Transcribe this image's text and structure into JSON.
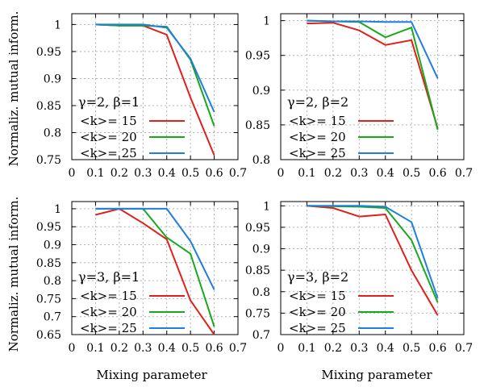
{
  "figure": {
    "ylabel": "Normaliz. mutual inform.",
    "xlabel": "Mixing parameter"
  },
  "chart_data": [
    {
      "type": "line",
      "annotation": "γ=2,  β=1",
      "x": [
        0.1,
        0.2,
        0.3,
        0.4,
        0.5,
        0.6
      ],
      "xlim": [
        0,
        0.7
      ],
      "ylim": [
        0.75,
        1.02
      ],
      "xticks": [
        "0",
        "0.1",
        "0.2",
        "0.3",
        "0.4",
        "0.5",
        "0.6",
        "0.7"
      ],
      "yticks": [
        "0.75",
        "0.8",
        "0.85",
        "0.9",
        "0.95",
        "1"
      ],
      "ytick_values": [
        0.75,
        0.8,
        0.85,
        0.9,
        0.95,
        1.0
      ],
      "grid": true,
      "legend_position": "bottom-left",
      "series": [
        {
          "name": "<k>= 15",
          "color": "#e0201a",
          "values": [
            1.0,
            0.998,
            0.998,
            0.981,
            0.865,
            0.758
          ]
        },
        {
          "name": "<k>= 20",
          "color": "#17a81c",
          "values": [
            1.0,
            0.998,
            0.998,
            0.996,
            0.935,
            0.812
          ]
        },
        {
          "name": "<k>= 25",
          "color": "#1f7fe0",
          "values": [
            1.0,
            1.0,
            1.0,
            0.994,
            0.937,
            0.838
          ]
        }
      ]
    },
    {
      "type": "line",
      "annotation": "γ=2,  β=2",
      "x": [
        0.1,
        0.2,
        0.3,
        0.4,
        0.5,
        0.6
      ],
      "xlim": [
        0,
        0.7
      ],
      "ylim": [
        0.8,
        1.01
      ],
      "xticks": [
        "0",
        "0.1",
        "0.2",
        "0.3",
        "0.4",
        "0.5",
        "0.6",
        "0.7"
      ],
      "yticks": [
        "0.8",
        "0.85",
        "0.9",
        "0.95",
        "1"
      ],
      "ytick_values": [
        0.8,
        0.85,
        0.9,
        0.95,
        1.0
      ],
      "grid": true,
      "legend_position": "bottom-left",
      "series": [
        {
          "name": "<k>= 15",
          "color": "#e0201a",
          "values": [
            0.996,
            0.997,
            0.986,
            0.965,
            0.972,
            0.845
          ]
        },
        {
          "name": "<k>= 20",
          "color": "#17a81c",
          "values": [
            1.0,
            0.999,
            0.998,
            0.976,
            0.99,
            0.843
          ]
        },
        {
          "name": "<k>= 25",
          "color": "#1f7fe0",
          "values": [
            1.0,
            0.999,
            0.999,
            0.998,
            0.998,
            0.917
          ]
        }
      ]
    },
    {
      "type": "line",
      "annotation": "γ=3,  β=1",
      "x": [
        0.1,
        0.2,
        0.3,
        0.4,
        0.5,
        0.6
      ],
      "xlim": [
        0,
        0.7
      ],
      "ylim": [
        0.65,
        1.02
      ],
      "xticks": [
        "0",
        "0.1",
        "0.2",
        "0.3",
        "0.4",
        "0.5",
        "0.6",
        "0.7"
      ],
      "yticks": [
        "0.65",
        "0.7",
        "0.75",
        "0.8",
        "0.85",
        "0.9",
        "0.95",
        "1"
      ],
      "ytick_values": [
        0.65,
        0.7,
        0.75,
        0.8,
        0.85,
        0.9,
        0.95,
        1.0
      ],
      "grid": true,
      "legend_position": "bottom-left",
      "series": [
        {
          "name": "<k>= 15",
          "color": "#e0201a",
          "values": [
            0.983,
            1.0,
            0.96,
            0.915,
            0.745,
            0.65
          ]
        },
        {
          "name": "<k>= 20",
          "color": "#17a81c",
          "values": [
            1.0,
            1.0,
            1.0,
            0.92,
            0.875,
            0.672
          ]
        },
        {
          "name": "<k>= 25",
          "color": "#1f7fe0",
          "values": [
            1.0,
            1.0,
            1.0,
            1.0,
            0.91,
            0.775
          ]
        }
      ]
    },
    {
      "type": "line",
      "annotation": "γ=3,  β=2",
      "x": [
        0.1,
        0.2,
        0.3,
        0.4,
        0.5,
        0.6
      ],
      "xlim": [
        0,
        0.7
      ],
      "ylim": [
        0.7,
        1.01
      ],
      "xticks": [
        "0",
        "0.1",
        "0.2",
        "0.3",
        "0.4",
        "0.5",
        "0.6",
        "0.7"
      ],
      "yticks": [
        "0.7",
        "0.75",
        "0.8",
        "0.85",
        "0.9",
        "0.95",
        "1"
      ],
      "ytick_values": [
        0.7,
        0.75,
        0.8,
        0.85,
        0.9,
        0.95,
        1.0
      ],
      "grid": true,
      "legend_position": "bottom-left",
      "series": [
        {
          "name": "<k>= 15",
          "color": "#e0201a",
          "values": [
            1.0,
            0.995,
            0.975,
            0.98,
            0.85,
            0.745
          ]
        },
        {
          "name": "<k>= 20",
          "color": "#17a81c",
          "values": [
            1.0,
            0.999,
            0.998,
            0.995,
            0.92,
            0.775
          ]
        },
        {
          "name": "<k>= 25",
          "color": "#1f7fe0",
          "values": [
            1.0,
            1.0,
            1.0,
            0.998,
            0.962,
            0.785
          ]
        }
      ]
    }
  ]
}
